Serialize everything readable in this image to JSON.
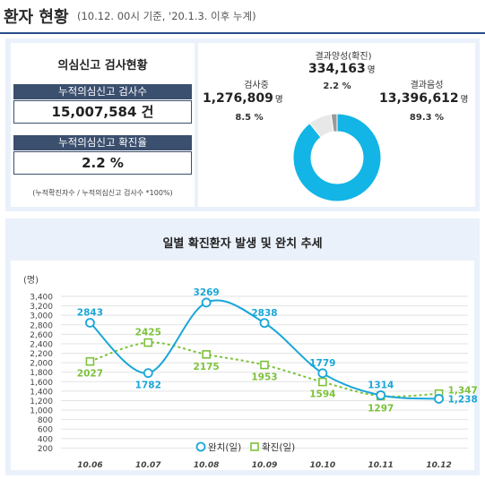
{
  "header": {
    "title": "환자 현황",
    "subtitle": "(10.12. 00시 기준, '20.1.3. 이후 누계)"
  },
  "test_status": {
    "title": "의심신고 검사현황",
    "cumulative_tests_label": "누적의심신고 검사수",
    "cumulative_tests_value": "15,007,584 건",
    "positive_rate_label": "누적의심신고 확진율",
    "positive_rate_value": "2.2 %",
    "formula_note": "(누적확진자수 / 누적의심신고 검사수 *100%)"
  },
  "pie": {
    "positive_label": "결과양성(확진)",
    "positive_value": "334,163",
    "positive_unit": "명",
    "positive_pct": "2.2 %",
    "testing_label": "검사중",
    "testing_value": "1,276,809",
    "testing_unit": "명",
    "testing_pct": "8.5 %",
    "negative_label": "결과음성",
    "negative_value": "13,396,612",
    "negative_unit": "명",
    "negative_pct": "89.3 %",
    "slices": [
      {
        "name": "결과음성",
        "percent": 89.3,
        "color": "#12b5e5"
      },
      {
        "name": "검사중",
        "percent": 8.5,
        "color": "#e8e8e8"
      },
      {
        "name": "결과양성(확진)",
        "percent": 2.2,
        "color": "#9a9a9a"
      }
    ]
  },
  "chart_title": "일별 확진환자 발생 및 완치 추세",
  "chart_data": {
    "type": "line",
    "ylabel": "(명)",
    "ylim": [
      0,
      3400
    ],
    "yticks": [
      "3,400",
      "3,200",
      "3,000",
      "2,800",
      "2,600",
      "2,400",
      "2,200",
      "2,000",
      "1,800",
      "1,600",
      "1,400",
      "1,200",
      "1,000",
      "800",
      "600",
      "400",
      "200"
    ],
    "ytick_values": [
      3400,
      3200,
      3000,
      2800,
      2600,
      2400,
      2200,
      2000,
      1800,
      1600,
      1400,
      1200,
      1000,
      800,
      600,
      400,
      200
    ],
    "categories": [
      "10.06",
      "10.07",
      "10.08",
      "10.09",
      "10.10",
      "10.11",
      "10.12"
    ],
    "series": [
      {
        "name": "완치(일)",
        "values": [
          2843,
          1782,
          3269,
          2838,
          1779,
          1314,
          1238
        ],
        "labels": [
          "2843",
          "1782",
          "3269",
          "2838",
          "1779",
          "1314",
          "1,238"
        ],
        "color": "#1aa6d8"
      },
      {
        "name": "확진(일)",
        "values": [
          2027,
          2425,
          2175,
          1953,
          1594,
          1297,
          1347
        ],
        "labels": [
          "2027",
          "2425",
          "2175",
          "1953",
          "1594",
          "1297",
          "1,347"
        ],
        "color": "#7cc23a"
      }
    ],
    "legend": "bottom"
  }
}
